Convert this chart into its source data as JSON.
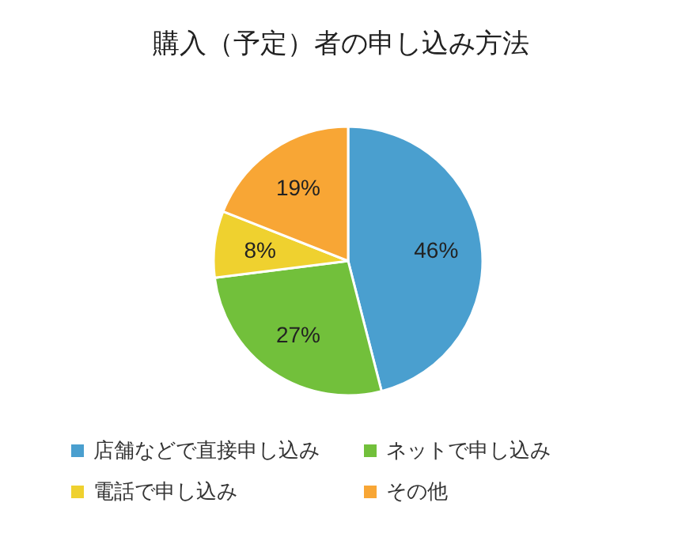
{
  "chart_data": {
    "type": "pie",
    "title": "購入（予定）者の申し込み方法",
    "categories": [
      "店舗などで直接申し込み",
      "ネットで申し込み",
      "電話で申し込み",
      "その他"
    ],
    "values": [
      46,
      27,
      8,
      19
    ],
    "value_labels": [
      "46%",
      "27%",
      "8%",
      "19%"
    ],
    "colors": [
      "#4a9fcf",
      "#72c03b",
      "#efd12f",
      "#f8a635"
    ],
    "legend": "bottom"
  }
}
